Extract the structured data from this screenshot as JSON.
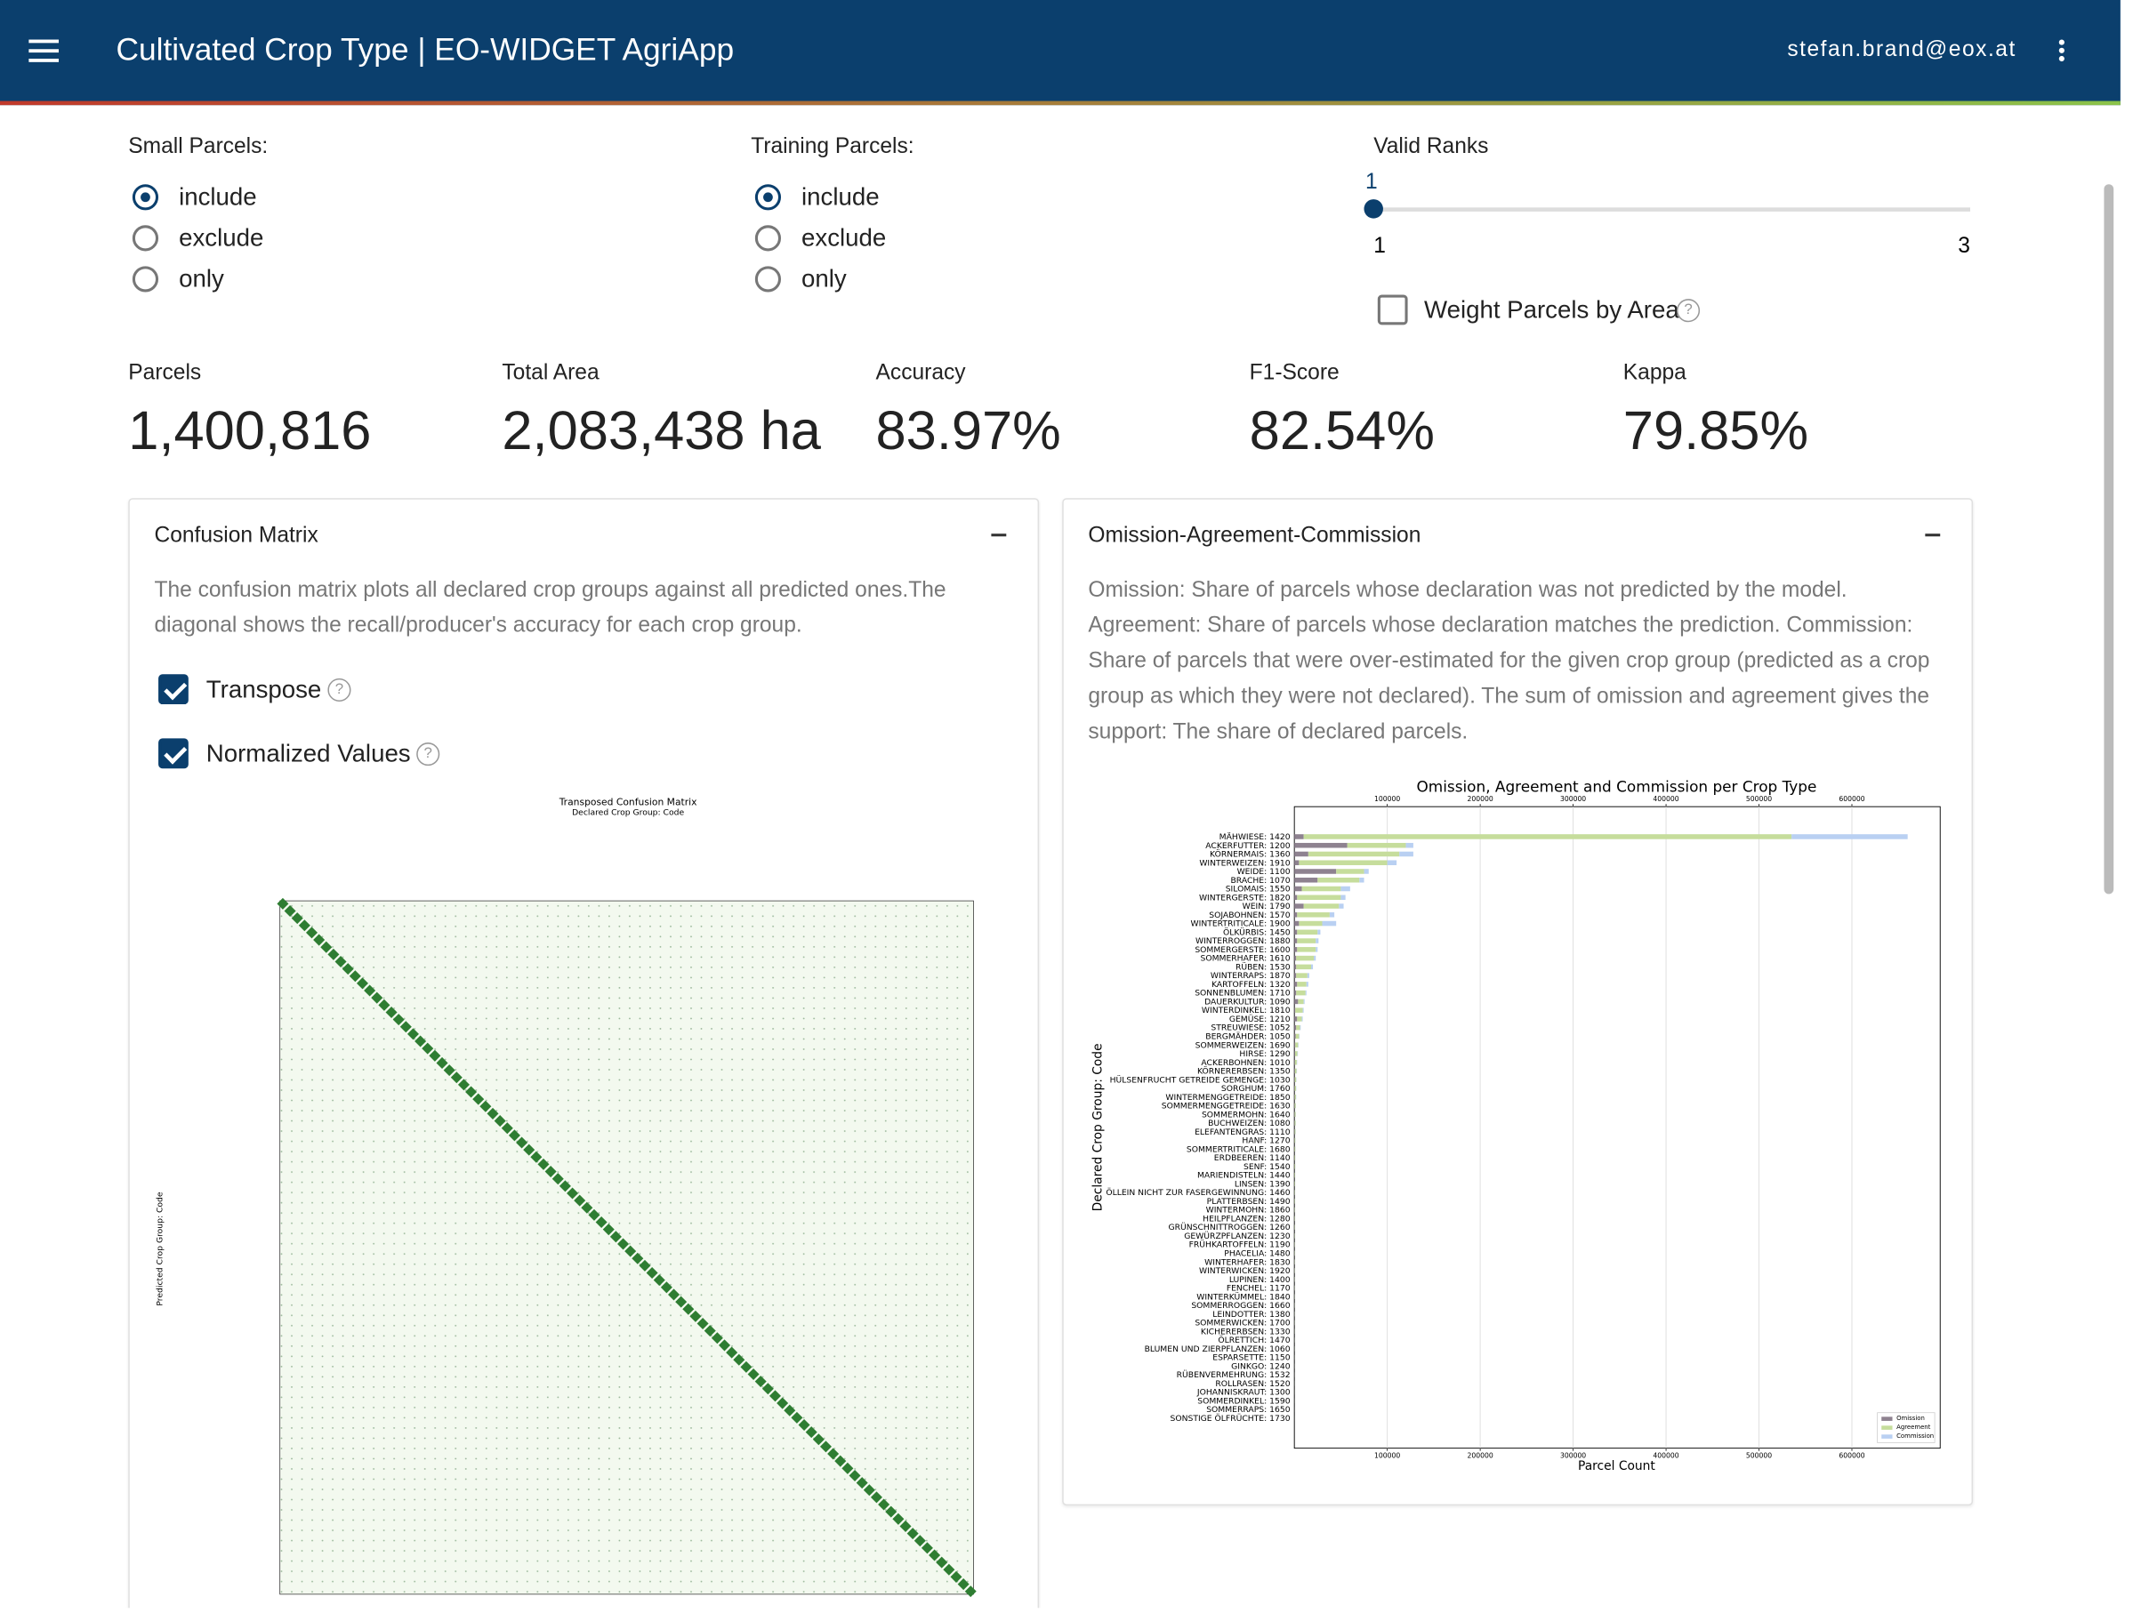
{
  "header": {
    "title": "Cultivated Crop Type | EO-WIDGET AgriApp",
    "user": "stefan.brand@eox.at"
  },
  "filters": {
    "small_parcels": {
      "label": "Small Parcels:",
      "options": [
        "include",
        "exclude",
        "only"
      ],
      "selected": 0
    },
    "training_parcels": {
      "label": "Training Parcels:",
      "options": [
        "include",
        "exclude",
        "only"
      ],
      "selected": 0
    },
    "valid_ranks": {
      "label": "Valid Ranks",
      "value": 1,
      "min": 1,
      "max": 3
    },
    "weight_by_area": {
      "label": "Weight Parcels by Area",
      "checked": false
    }
  },
  "stats": [
    {
      "label": "Parcels",
      "value": "1,400,816"
    },
    {
      "label": "Total Area",
      "value": "2,083,438 ha"
    },
    {
      "label": "Accuracy",
      "value": "83.97%"
    },
    {
      "label": "F1-Score",
      "value": "82.54%"
    },
    {
      "label": "Kappa",
      "value": "79.85%"
    }
  ],
  "confusion_panel": {
    "title": "Confusion Matrix",
    "description": "The confusion matrix plots all declared crop groups against all predicted ones.The diagonal shows the recall/producer's accuracy for each crop group.",
    "transpose": {
      "label": "Transpose",
      "checked": true
    },
    "normalized": {
      "label": "Normalized Values",
      "checked": true
    },
    "matrix": {
      "title": "Transposed Confusion Matrix",
      "x_label": "Declared Crop Group: Code",
      "y_label": "Predicted Crop Group: Code"
    }
  },
  "oac_panel": {
    "title": "Omission-Agreement-Commission",
    "description": "Omission: Share of parcels whose declaration was not predicted by the model. Agreement: Share of parcels whose declaration matches the prediction. Commission: Share of parcels that were over-estimated for the given crop group (predicted as a crop group as which they were not declared). The sum of omission and agreement gives the support: The share of declared parcels.",
    "chart_data": {
      "type": "bar",
      "orientation": "horizontal",
      "stacked": true,
      "title": "Omission, Agreement and Commission per Crop Type",
      "xlabel": "Parcel Count",
      "ylabel": "Declared Crop Group: Code",
      "legend": "lower right",
      "grid": true,
      "categories": [
        "MÄHWIESE: 1420",
        "ACKERFUTTER: 1200",
        "KÖRNERMAIS: 1360",
        "WINTERWEIZEN: 1910",
        "WEIDE: 1100",
        "BRACHE: 1070",
        "SILOMAIS: 1550",
        "WINTERGERSTE: 1820",
        "WEIN: 1790",
        "SOJABOHNEN: 1570",
        "WINTERTRITICALE: 1900",
        "ÖLKÜRBIS: 1450",
        "WINTERROGGEN: 1880",
        "SOMMERGERSTE: 1600",
        "SOMMERHAFER: 1610",
        "RÜBEN: 1530",
        "WINTERRAPS: 1870",
        "KARTOFFELN: 1320",
        "SONNENBLUMEN: 1710",
        "DAUERKULTUR: 1090",
        "WINTERDINKEL: 1810",
        "GEMÜSE: 1210",
        "STREUWIESE: 1052",
        "BERGMÄHDER: 1050",
        "SOMMERWEIZEN: 1690",
        "HIRSE: 1290",
        "ACKERBOHNEN: 1010",
        "KÖRNERERBSEN: 1350",
        "HÜLSENFRUCHT GETREIDE GEMENGE: 1030",
        "SORGHUM: 1760",
        "WINTERMENGGETREIDE: 1850",
        "SOMMERMENGGETREIDE: 1630",
        "SOMMERMOHN: 1640",
        "BUCHWEIZEN: 1080",
        "ELEFANTENGRAS: 1110",
        "HANF: 1270",
        "SOMMERTRITICALE: 1680",
        "ERDBEEREN: 1140",
        "SENF: 1540",
        "MARIENDISTELN: 1440",
        "LINSEN: 1390",
        "ÖLLEIN NICHT ZUR FASERGEWINNUNG: 1460",
        "PLATTERBSEN: 1490",
        "WINTERMOHN: 1860",
        "HEILPFLANZEN: 1280",
        "GRÜNSCHNITTROGGEN: 1260",
        "GEWÜRZPFLANZEN: 1230",
        "FRÜHKARTOFFELN: 1190",
        "PHACELIA: 1480",
        "WINTERHAFER: 1830",
        "WINTERWICKEN: 1920",
        "LUPINEN: 1400",
        "FENCHEL: 1170",
        "WINTERKÜMMEL: 1840",
        "SOMMERROGGEN: 1660",
        "LEINDOTTER: 1380",
        "SOMMERWICKEN: 1700",
        "KICHERERBSEN: 1330",
        "ÖLRETTICH: 1470",
        "BLUMEN UND ZIERPFLANZEN: 1060",
        "ESPARSETTE: 1150",
        "GINKGO: 1240",
        "RÜBENVERMEHRUNG: 1532",
        "ROLLRASEN: 1520",
        "JOHANNISKRAUT: 1300",
        "SOMMERDINKEL: 1590",
        "SOMMERRAPS: 1650",
        "SONSTIGE ÖLFRÜCHTE: 1730"
      ],
      "series": [
        {
          "name": "Omission",
          "color": "#8e8290",
          "values": [
            10000,
            57000,
            15000,
            5000,
            45000,
            25000,
            8000,
            3000,
            10000,
            3000,
            5000,
            3000,
            3000,
            3000,
            2000,
            2000,
            2000,
            3000,
            2000,
            4000,
            1000,
            3000,
            2000,
            1500,
            1000,
            800,
            600,
            600,
            500,
            400,
            400,
            300,
            300,
            300,
            300,
            250,
            200,
            200,
            200,
            150,
            150,
            150,
            100,
            100,
            100,
            100,
            100,
            80,
            80,
            60,
            60,
            60,
            50,
            50,
            40,
            40,
            40,
            30,
            30,
            30,
            20,
            20,
            20,
            10,
            10,
            10,
            10,
            10
          ]
        },
        {
          "name": "Agreement",
          "color": "#c6dd9c",
          "values": [
            525000,
            63000,
            98000,
            95000,
            30000,
            45000,
            42000,
            47000,
            38000,
            35000,
            25000,
            22000,
            20000,
            20000,
            19000,
            16000,
            12000,
            10000,
            10000,
            6000,
            8000,
            5000,
            4000,
            3500,
            3000,
            2500,
            2000,
            1800,
            1500,
            1400,
            1300,
            1200,
            1100,
            1000,
            900,
            800,
            800,
            700,
            700,
            600,
            600,
            500,
            500,
            400,
            400,
            400,
            350,
            300,
            300,
            250,
            250,
            200,
            200,
            180,
            160,
            150,
            140,
            120,
            100,
            100,
            80,
            70,
            60,
            50,
            40,
            30,
            20,
            20
          ]
        },
        {
          "name": "Commission",
          "color": "#b9d0f2",
          "values": [
            125000,
            8000,
            15000,
            10000,
            5000,
            5000,
            10000,
            5000,
            5000,
            5000,
            15000,
            3000,
            3000,
            2000,
            2000,
            2000,
            2000,
            2000,
            1000,
            1000,
            1000,
            1000,
            800,
            500,
            500,
            500,
            400,
            400,
            300,
            300,
            300,
            200,
            200,
            200,
            200,
            150,
            150,
            100,
            100,
            100,
            100,
            100,
            80,
            80,
            60,
            60,
            50,
            50,
            40,
            40,
            30,
            30,
            30,
            20,
            20,
            20,
            20,
            10,
            10,
            10,
            10,
            10,
            10,
            10,
            10,
            10,
            5,
            5
          ]
        }
      ],
      "xlim": [
        0,
        695000
      ],
      "xticks": [
        100000,
        200000,
        300000,
        400000,
        500000,
        600000
      ]
    }
  }
}
